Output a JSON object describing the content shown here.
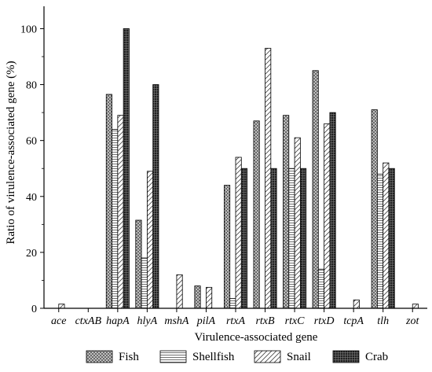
{
  "chart_data": {
    "type": "bar",
    "xlabel": "Virulence-associated gene",
    "ylabel": "Ratio of virulence-associated gene (%)",
    "ylim": [
      0,
      108
    ],
    "yticks": [
      0,
      20,
      40,
      60,
      80,
      100
    ],
    "legend_position": "bottom",
    "categories": [
      "ace",
      "ctxAB",
      "hapA",
      "hlyA",
      "mshA",
      "pilA",
      "rtxA",
      "rtxB",
      "rtxC",
      "rtxD",
      "tcpA",
      "tlh",
      "zot"
    ],
    "series": [
      {
        "name": "Fish",
        "pattern": "crosshatch",
        "values": [
          0,
          0,
          76.5,
          31.5,
          0,
          8,
          44,
          67,
          69,
          85,
          0,
          71,
          0
        ]
      },
      {
        "name": "Shellfish",
        "pattern": "horizontal",
        "values": [
          0,
          0,
          64,
          18,
          0,
          0,
          3.5,
          0,
          50,
          14,
          0,
          48,
          0
        ]
      },
      {
        "name": "Snail",
        "pattern": "diagonal",
        "values": [
          1.5,
          0,
          69,
          49,
          12,
          7.5,
          54,
          93,
          61,
          66,
          3,
          52,
          1.5
        ]
      },
      {
        "name": "Crab",
        "pattern": "dense-black",
        "values": [
          0,
          0,
          100,
          80,
          0,
          0,
          50,
          50,
          50,
          70,
          0,
          50,
          0
        ]
      }
    ]
  }
}
